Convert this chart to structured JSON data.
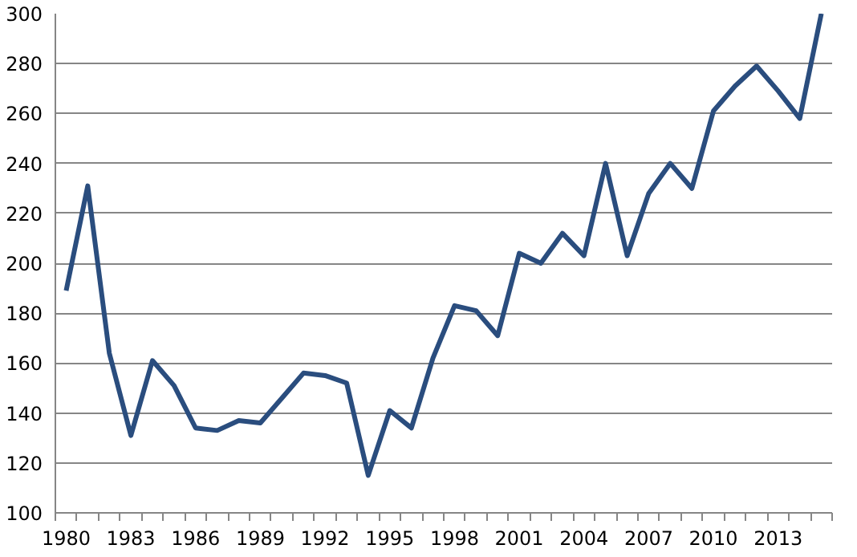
{
  "chart_data": {
    "type": "line",
    "categories": [
      "1980",
      null,
      null,
      "1983",
      null,
      null,
      "1986",
      null,
      null,
      "1989",
      null,
      null,
      "1992",
      null,
      null,
      "1995",
      null,
      null,
      "1998",
      null,
      null,
      "2001",
      null,
      null,
      "2004",
      null,
      null,
      "2007",
      null,
      null,
      "2010",
      null,
      null,
      "2013",
      null,
      null
    ],
    "series": [
      {
        "color": "#2a4d7e",
        "values": [
          189,
          231,
          164,
          131,
          161,
          151,
          134,
          133,
          137,
          136,
          146,
          156,
          155,
          152,
          115,
          141,
          134,
          162,
          183,
          181,
          171,
          204,
          200,
          212,
          203,
          240,
          203,
          228,
          240,
          230,
          261,
          271,
          279,
          269,
          258,
          300
        ]
      }
    ],
    "ylim": [
      100,
      300
    ],
    "yticks": [
      100,
      120,
      140,
      160,
      180,
      200,
      220,
      240,
      260,
      280,
      300
    ],
    "grid": "y",
    "marker": "none",
    "line_style": "solid"
  }
}
